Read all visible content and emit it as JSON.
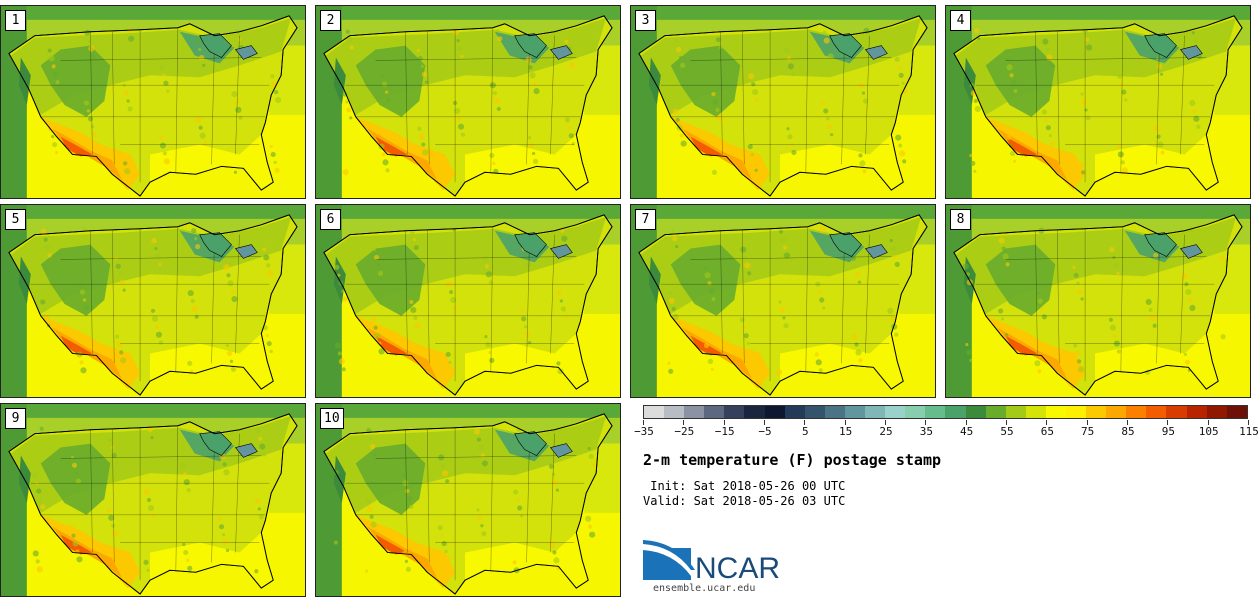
{
  "members": [
    "1",
    "2",
    "3",
    "4",
    "5",
    "6",
    "7",
    "8",
    "9",
    "10"
  ],
  "colorbar": {
    "colors": [
      "#dcdcdc",
      "#b8bcc4",
      "#8a92a4",
      "#5c6780",
      "#34405c",
      "#1a2540",
      "#0d1730",
      "#233a58",
      "#34546e",
      "#4a7486",
      "#62969e",
      "#80b6b6",
      "#98d2ca",
      "#86ceae",
      "#66bc8c",
      "#4aa26a",
      "#3c8a3c",
      "#68ac2c",
      "#a4ca18",
      "#d4e408",
      "#f8f800",
      "#fcf000",
      "#fcc800",
      "#fca800",
      "#fc8000",
      "#f45c00",
      "#d83c00",
      "#b82400",
      "#901800",
      "#6c1008"
    ],
    "tick_labels": [
      "−35",
      "−25",
      "−15",
      "−5",
      "5",
      "15",
      "25",
      "35",
      "45",
      "55",
      "65",
      "75",
      "85",
      "95",
      "105",
      "115"
    ]
  },
  "title": "2-m temperature (F) postage stamp",
  "init_line": " Init: Sat 2018-05-26 00 UTC",
  "valid_line": "Valid: Sat 2018-05-26 03 UTC",
  "logo_text": "NCAR",
  "url": "ensemble.ucar.edu"
}
